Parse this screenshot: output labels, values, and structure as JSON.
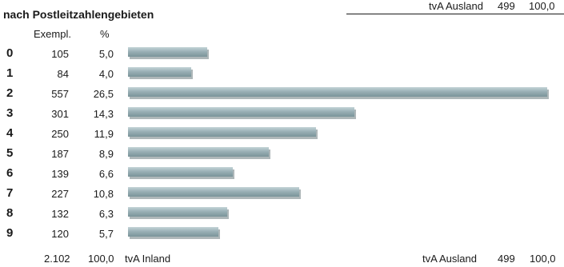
{
  "title": "nach Postleitzahlengebieten",
  "col_headers": {
    "exempl": "Exempl.",
    "pct": "%"
  },
  "top_right": {
    "label": "tvA Ausland",
    "count": "499",
    "pct": "100,0"
  },
  "footer": {
    "total_count": "2.102",
    "total_pct": "100,0",
    "inland_label": "tvA Inland",
    "ausland_label": "tvA Ausland",
    "ausland_count": "499",
    "ausland_pct": "100,0"
  },
  "chart_data": {
    "type": "bar",
    "orientation": "horizontal",
    "title": "nach Postleitzahlengebieten",
    "categories": [
      "0",
      "1",
      "2",
      "3",
      "4",
      "5",
      "6",
      "7",
      "8",
      "9"
    ],
    "exemplare_labels": [
      "105",
      "84",
      "557",
      "301",
      "250",
      "187",
      "139",
      "227",
      "132",
      "120"
    ],
    "percent_labels": [
      "5,0",
      "4,0",
      "26,5",
      "14,3",
      "11,9",
      "8,9",
      "6,6",
      "10,8",
      "6,3",
      "5,7"
    ],
    "values": [
      105,
      84,
      557,
      301,
      250,
      187,
      139,
      227,
      132,
      120
    ],
    "bar_color": "#8fa7ad",
    "grid": false
  }
}
